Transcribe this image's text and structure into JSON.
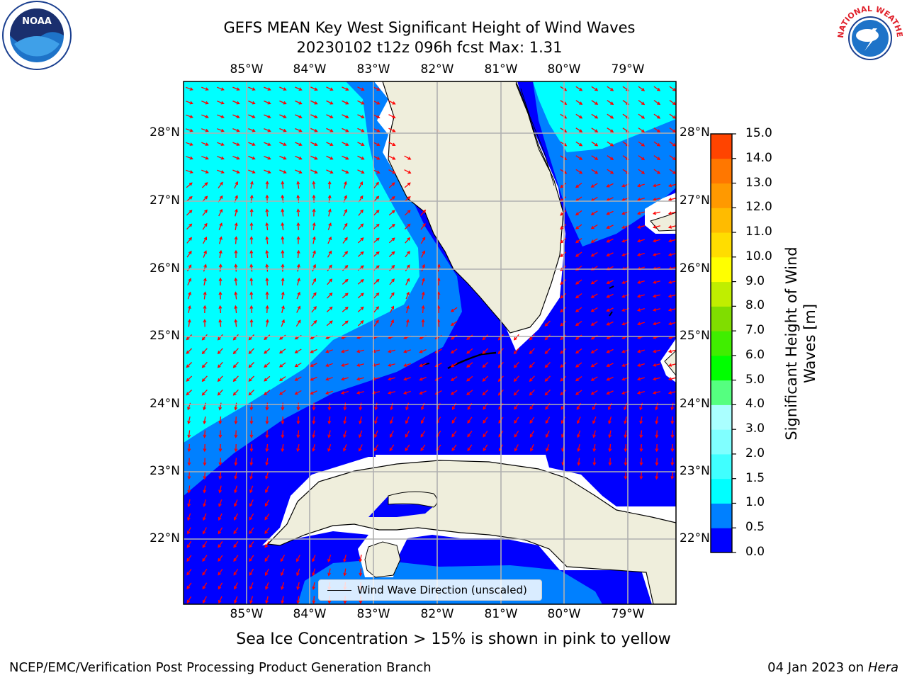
{
  "title": {
    "line1": "GEFS MEAN Key West Significant Height of Wind Waves",
    "line2": "20230102 t12z 096h fcst   Max: 1.31"
  },
  "logos": {
    "left": {
      "name": "noaa-logo",
      "text": "NOAA"
    },
    "right": {
      "name": "nws-logo",
      "text": "NATIONAL WEATHER SERVICE"
    }
  },
  "map": {
    "lon_labels": [
      "85°W",
      "84°W",
      "83°W",
      "82°W",
      "81°W",
      "80°W",
      "79°W"
    ],
    "lat_labels": [
      "28°N",
      "27°N",
      "26°N",
      "25°N",
      "24°N",
      "23°N",
      "22°N"
    ],
    "legend_label": "Wind Wave Direction (unscaled)",
    "colors": {
      "land": "#efeedc",
      "arrow": "#ff0000",
      "grid": "#b0b0b0"
    }
  },
  "colorbar": {
    "label_line1": "Significant Height of Wind",
    "label_line2": "Waves [m]",
    "ticks": [
      "15.0",
      "14.0",
      "13.0",
      "12.0",
      "11.0",
      "10.0",
      "9.0",
      "8.0",
      "7.0",
      "6.0",
      "5.0",
      "4.0",
      "3.0",
      "2.0",
      "1.5",
      "1.0",
      "0.5",
      "0.0"
    ],
    "bands": [
      "#0000ff",
      "#0080ff",
      "#00ffff",
      "#40ffff",
      "#80ffff",
      "#aaffff",
      "#55ff80",
      "#00ff00",
      "#40ee00",
      "#80dd00",
      "#c0ee00",
      "#ffff00",
      "#ffdd00",
      "#ffbb00",
      "#ff9900",
      "#ff7700",
      "#ff4400",
      "#ff0000"
    ]
  },
  "caption": "Sea Ice Concentration > 15% is shown in pink to yellow",
  "footer": {
    "left": "NCEP/EMC/Verification Post Processing Product Generation Branch",
    "date": "04 Jan 2023 on ",
    "machine": "Hera"
  }
}
